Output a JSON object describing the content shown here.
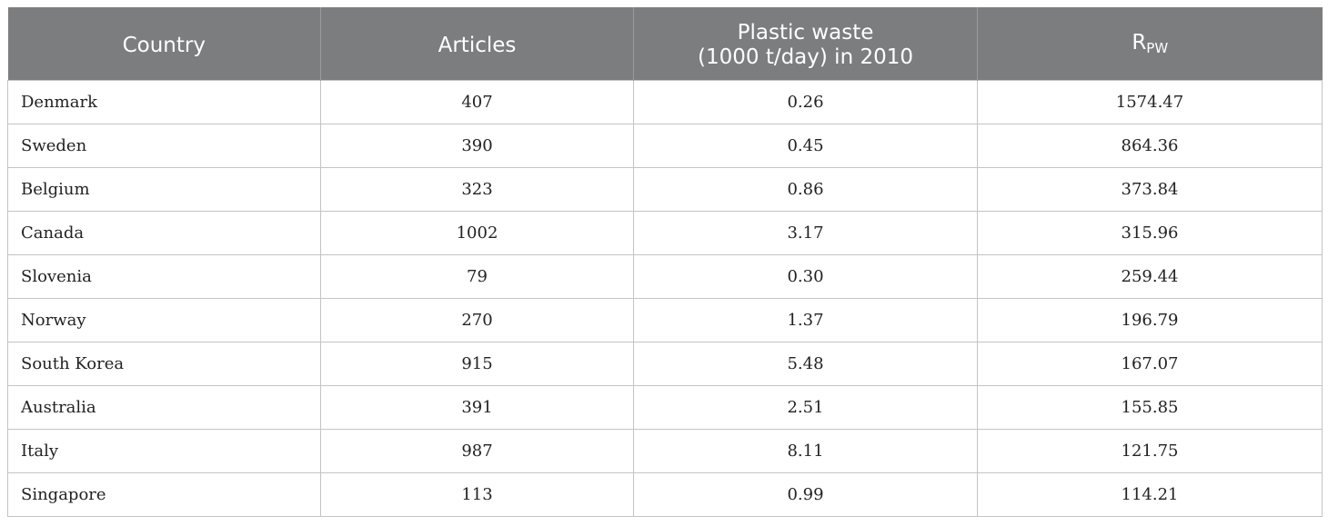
{
  "table": {
    "headers": {
      "country": "Country",
      "articles": "Articles",
      "plastic_line1": "Plastic waste",
      "plastic_line2": "(1000 t/day) in 2010",
      "rpw_main": "R",
      "rpw_sub": "PW"
    },
    "rows": [
      {
        "country": "Denmark",
        "articles": "407",
        "plastic": "0.26",
        "rpw": "1574.47"
      },
      {
        "country": "Sweden",
        "articles": "390",
        "plastic": "0.45",
        "rpw": "864.36"
      },
      {
        "country": "Belgium",
        "articles": "323",
        "plastic": "0.86",
        "rpw": "373.84"
      },
      {
        "country": "Canada",
        "articles": "1002",
        "plastic": "3.17",
        "rpw": "315.96"
      },
      {
        "country": "Slovenia",
        "articles": "79",
        "plastic": "0.30",
        "rpw": "259.44"
      },
      {
        "country": "Norway",
        "articles": "270",
        "plastic": "1.37",
        "rpw": "196.79"
      },
      {
        "country": "South Korea",
        "articles": "915",
        "plastic": "5.48",
        "rpw": "167.07"
      },
      {
        "country": "Australia",
        "articles": "391",
        "plastic": "2.51",
        "rpw": "155.85"
      },
      {
        "country": "Italy",
        "articles": "987",
        "plastic": "8.11",
        "rpw": "121.75"
      },
      {
        "country": "Singapore",
        "articles": "113",
        "plastic": "0.99",
        "rpw": "114.21"
      }
    ]
  }
}
